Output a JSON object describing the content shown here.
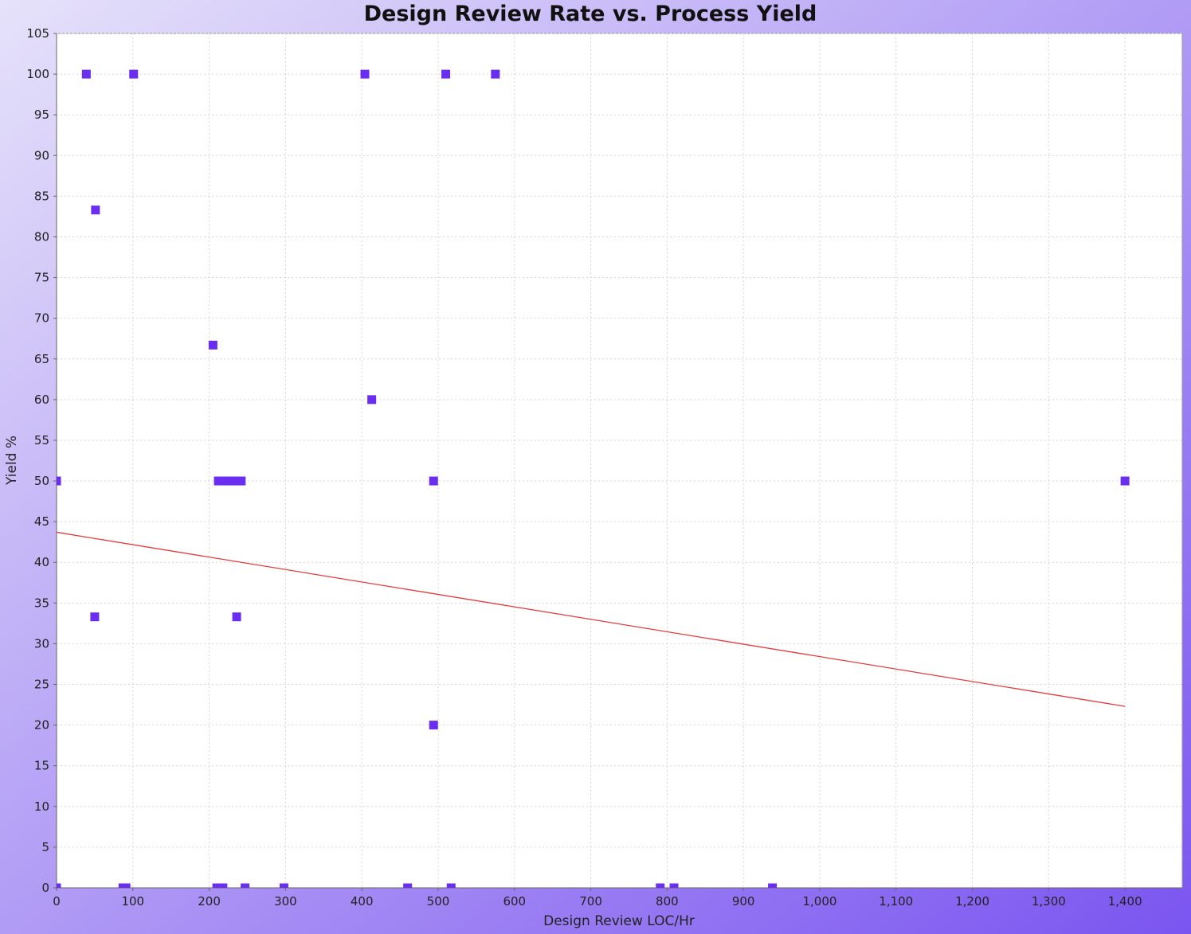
{
  "colors": {
    "background_start": "#e6e2fa",
    "background_end": "#7b55f0",
    "marker": "#6a2ef0",
    "trend_line": "#e53b3b",
    "plot_background": "#ffffff",
    "grid": "#d6d6d6"
  },
  "chart_data": {
    "type": "scatter",
    "title": "Design Review Rate vs. Process Yield",
    "xlabel": "Design Review LOC/Hr",
    "ylabel": "Yield %",
    "xlim": [
      0,
      1475
    ],
    "ylim": [
      0,
      105
    ],
    "xticks": [
      0,
      100,
      200,
      300,
      400,
      500,
      600,
      700,
      800,
      900,
      1000,
      1100,
      1200,
      1300,
      1400
    ],
    "xtick_labels": [
      "0",
      "100",
      "200",
      "300",
      "400",
      "500",
      "600",
      "700",
      "800",
      "900",
      "1,000",
      "1,100",
      "1,200",
      "1,300",
      "1,400"
    ],
    "yticks": [
      0,
      5,
      10,
      15,
      20,
      25,
      30,
      35,
      40,
      45,
      50,
      55,
      60,
      65,
      70,
      75,
      80,
      85,
      90,
      95,
      100,
      105
    ],
    "ytick_labels": [
      "0",
      "5",
      "10",
      "15",
      "20",
      "25",
      "30",
      "35",
      "40",
      "45",
      "50",
      "55",
      "60",
      "65",
      "70",
      "75",
      "80",
      "85",
      "90",
      "95",
      "100",
      "105"
    ],
    "grid": true,
    "legend": "none",
    "series": [
      {
        "points": [
          {
            "x": 39,
            "y": 100
          },
          {
            "x": 101,
            "y": 100
          },
          {
            "x": 404,
            "y": 100
          },
          {
            "x": 510,
            "y": 100
          },
          {
            "x": 575,
            "y": 100
          },
          {
            "x": 51,
            "y": 83.3
          },
          {
            "x": 205,
            "y": 66.7
          },
          {
            "x": 413,
            "y": 60
          },
          {
            "x": 0,
            "y": 50
          },
          {
            "x": 212,
            "y": 50
          },
          {
            "x": 218,
            "y": 50
          },
          {
            "x": 224,
            "y": 50
          },
          {
            "x": 230,
            "y": 50
          },
          {
            "x": 236,
            "y": 50
          },
          {
            "x": 242,
            "y": 50
          },
          {
            "x": 494,
            "y": 50
          },
          {
            "x": 1400,
            "y": 50
          },
          {
            "x": 50,
            "y": 33.3
          },
          {
            "x": 236,
            "y": 33.3
          },
          {
            "x": 494,
            "y": 20
          },
          {
            "x": 0,
            "y": 0
          },
          {
            "x": 87,
            "y": 0
          },
          {
            "x": 91,
            "y": 0
          },
          {
            "x": 210,
            "y": 0
          },
          {
            "x": 218,
            "y": 0
          },
          {
            "x": 247,
            "y": 0
          },
          {
            "x": 298,
            "y": 0
          },
          {
            "x": 460,
            "y": 0
          },
          {
            "x": 517,
            "y": 0
          },
          {
            "x": 791,
            "y": 0
          },
          {
            "x": 809,
            "y": 0
          },
          {
            "x": 938,
            "y": 0
          }
        ]
      }
    ],
    "trend_line": {
      "x": [
        0,
        1400
      ],
      "y": [
        43.7,
        22.3
      ]
    }
  }
}
